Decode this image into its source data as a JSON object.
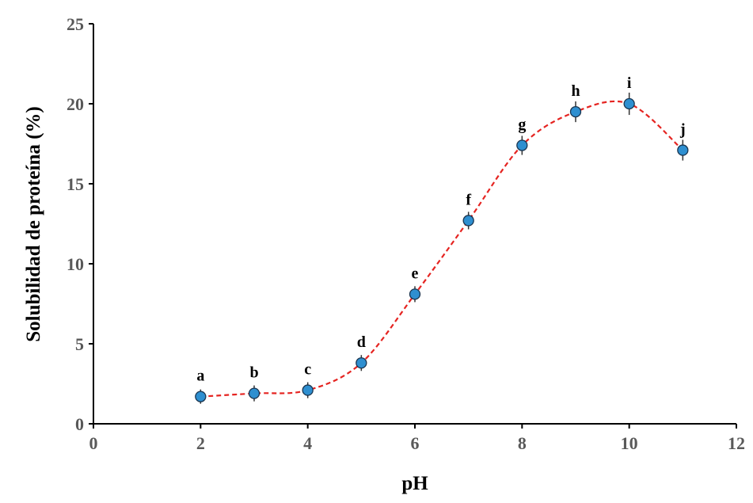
{
  "chart_data": {
    "type": "line",
    "title": "",
    "xlabel": "pH",
    "ylabel": "Solubilidad de proteína (%)",
    "xlim": [
      0,
      12
    ],
    "ylim": [
      0,
      25
    ],
    "xticks": [
      0,
      2,
      4,
      6,
      8,
      10,
      12
    ],
    "yticks": [
      0,
      5,
      10,
      15,
      20,
      25
    ],
    "grid": false,
    "series": [
      {
        "name": "Solubilidad",
        "x": [
          2,
          3,
          4,
          5,
          6,
          7,
          8,
          9,
          10,
          11
        ],
        "y": [
          1.7,
          1.9,
          2.1,
          3.8,
          8.1,
          12.7,
          17.4,
          19.5,
          20.0,
          17.1
        ],
        "error": [
          0.1,
          0.15,
          0.15,
          0.15,
          0.15,
          0.2,
          0.25,
          0.3,
          0.35,
          0.3
        ],
        "labels": [
          "a",
          "b",
          "c",
          "d",
          "e",
          "f",
          "g",
          "h",
          "i",
          "j"
        ]
      }
    ],
    "colors": {
      "marker": "#2E8FD0",
      "line": "#E52421"
    }
  }
}
